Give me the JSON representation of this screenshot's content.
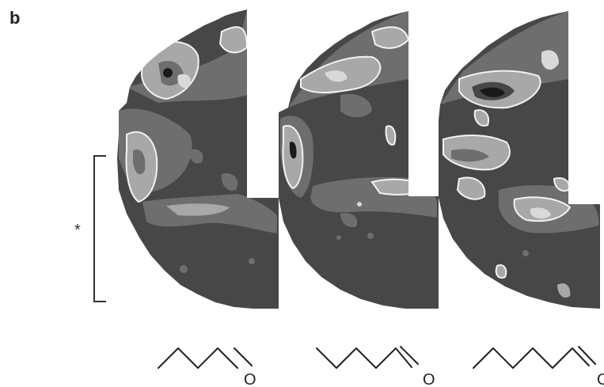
{
  "panel_label": "b",
  "bracket_label": "*",
  "molecules": [
    {
      "carbons": 5,
      "heteroatom": "O"
    },
    {
      "carbons": 6,
      "heteroatom": "O"
    },
    {
      "carbons": 7,
      "heteroatom": "O"
    }
  ],
  "colors": {
    "dark": "#474747",
    "mid": "#6e6e6e",
    "light": "#a8a8a8",
    "pale": "#d9d9d9",
    "black": "#1a1a1a",
    "outline": "#f2f2f2"
  }
}
